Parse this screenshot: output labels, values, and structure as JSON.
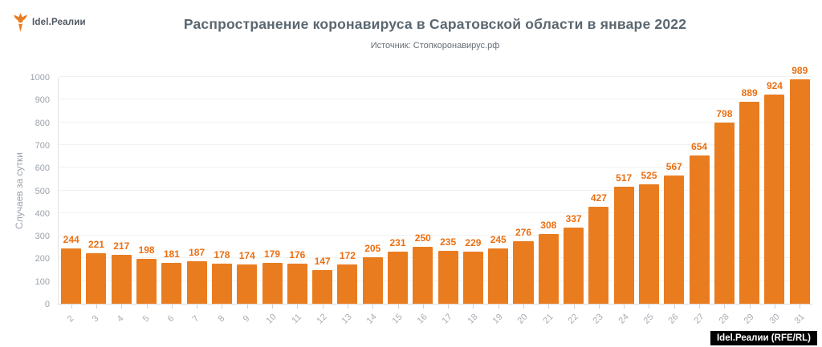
{
  "logo": {
    "text": "Idel.Реалии"
  },
  "header": {
    "title": "Распространение коронавируса в Саратовской области в январе 2022",
    "subtitle": "Источник: Стопкоронавирус.рф"
  },
  "chart_data": {
    "type": "bar",
    "categories": [
      2,
      3,
      4,
      5,
      6,
      7,
      8,
      9,
      10,
      11,
      12,
      13,
      14,
      15,
      16,
      17,
      18,
      19,
      20,
      21,
      22,
      23,
      24,
      25,
      26,
      27,
      28,
      29,
      30,
      31
    ],
    "values": [
      244,
      221,
      217,
      198,
      181,
      187,
      178,
      174,
      179,
      176,
      147,
      172,
      205,
      231,
      250,
      235,
      229,
      245,
      276,
      308,
      337,
      427,
      517,
      525,
      567,
      654,
      798,
      889,
      924,
      989
    ],
    "title": "Распространение коронавируса в Саратовской области в январе 2022",
    "subtitle": "Источник: Стопкоронавирус.рф",
    "xlabel": "",
    "ylabel": "Случаев за сутки",
    "ylim": [
      0,
      1000
    ],
    "ytick_step": 100,
    "grid": true,
    "legend_position": "none",
    "colors": {
      "bar": "#EA7C20",
      "value_label": "#EB6F12",
      "axis_text": "#9AA2AB",
      "grid_line": "#F1F1F1",
      "title_text": "#5B6770"
    }
  },
  "footer": {
    "attribution": "Idel.Реалии (RFE/RL)"
  }
}
